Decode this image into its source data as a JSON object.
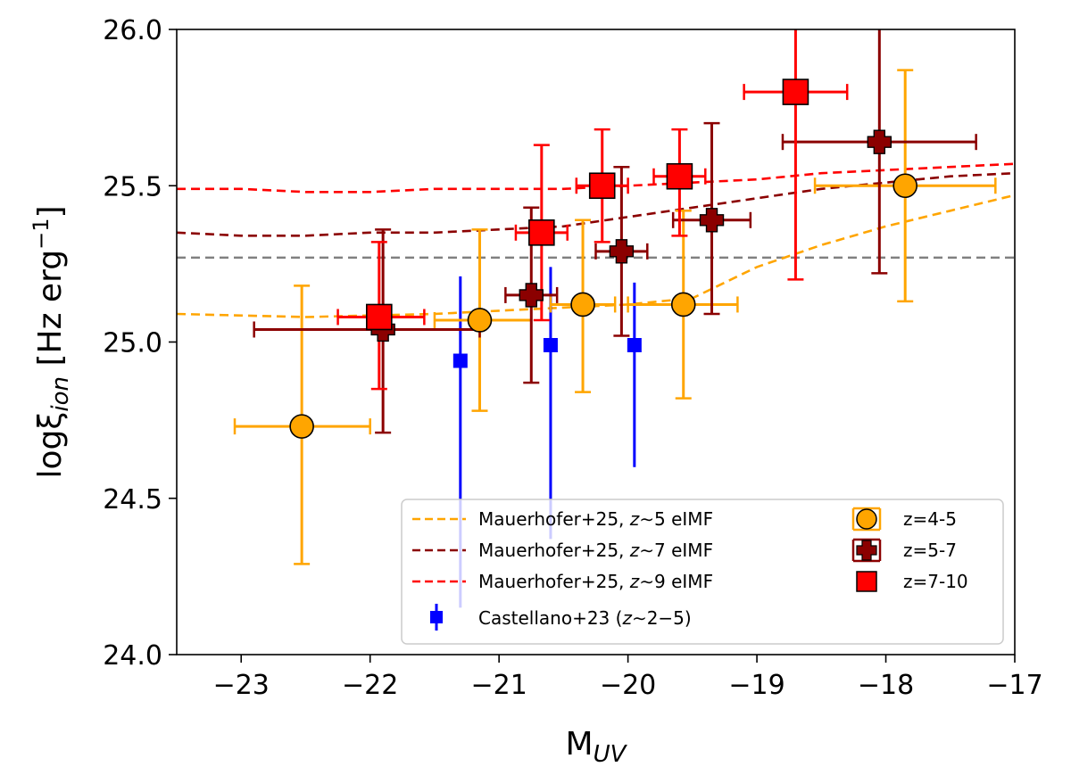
{
  "chart_data": {
    "type": "scatter",
    "xlabel": "M",
    "xlabel_sub": "UV",
    "ylabel": "logξ",
    "ylabel_sub": "ion",
    "ylabel_unit": " [Hz erg",
    "ylabel_sup": "−1",
    "ylabel_close": "]",
    "xlim": [
      -23.5,
      -17
    ],
    "ylim": [
      24.0,
      26.0
    ],
    "xticks": [
      -23,
      -22,
      -21,
      -20,
      -19,
      -18,
      -17
    ],
    "xtick_labels": [
      "−23",
      "−22",
      "−21",
      "−20",
      "−19",
      "−18",
      "−17"
    ],
    "yticks": [
      24.0,
      24.5,
      25.0,
      25.5,
      26.0
    ],
    "ytick_labels": [
      "24.0",
      "24.5",
      "25.0",
      "25.5",
      "26.0"
    ],
    "reference_line": {
      "y": 25.27,
      "color": "#808080",
      "style": "dashed"
    },
    "model_lines": [
      {
        "name": "Mauerhofer+25, z∼5 eIMF",
        "name_prefix": "Mauerhofer+25, ",
        "name_z": "z",
        "name_suffix": "∼5 eIMF",
        "color": "#FFA500",
        "x": [
          -23.5,
          -22.5,
          -21.5,
          -21.0,
          -20.5,
          -20.0,
          -19.5,
          -19.0,
          -18.5,
          -18.0,
          -17.5,
          -17.0
        ],
        "y": [
          25.09,
          25.08,
          25.09,
          25.1,
          25.11,
          25.12,
          25.14,
          25.24,
          25.31,
          25.37,
          25.42,
          25.47
        ]
      },
      {
        "name": "Mauerhofer+25, z∼7 eIMF",
        "name_prefix": "Mauerhofer+25, ",
        "name_z": "z",
        "name_suffix": "∼7 eIMF",
        "color": "#8B0000",
        "x": [
          -23.5,
          -23.0,
          -22.5,
          -22.0,
          -21.5,
          -21.0,
          -20.5,
          -20.0,
          -19.5,
          -19.0,
          -18.5,
          -18.0,
          -17.5,
          -17.0
        ],
        "y": [
          25.35,
          25.34,
          25.34,
          25.35,
          25.35,
          25.36,
          25.37,
          25.4,
          25.43,
          25.46,
          25.49,
          25.51,
          25.53,
          25.54
        ]
      },
      {
        "name": "Mauerhofer+25, z∼9 eIMF",
        "name_prefix": "Mauerhofer+25, ",
        "name_z": "z",
        "name_suffix": "∼9 eIMF",
        "color": "#FF0000",
        "x": [
          -23.5,
          -23.0,
          -22.5,
          -22.0,
          -21.5,
          -21.0,
          -20.5,
          -20.0,
          -19.5,
          -19.0,
          -18.5,
          -18.0,
          -17.5,
          -17.0
        ],
        "y": [
          25.49,
          25.49,
          25.48,
          25.48,
          25.49,
          25.49,
          25.49,
          25.5,
          25.51,
          25.52,
          25.54,
          25.55,
          25.56,
          25.57
        ]
      }
    ],
    "castellano": {
      "name": "Castellano+23 (z∼2−5)",
      "name_prefix": "Castellano+23 (",
      "name_z": "z",
      "name_suffix": "∼2−5)",
      "color": "#0000FF",
      "points": [
        {
          "x": -21.3,
          "y": 24.94,
          "ylo": 24.15,
          "yhi": 25.21
        },
        {
          "x": -20.6,
          "y": 24.99,
          "ylo": 24.37,
          "yhi": 25.24
        },
        {
          "x": -19.95,
          "y": 24.99,
          "ylo": 24.6,
          "yhi": 25.19
        }
      ]
    },
    "series": [
      {
        "name": "z=4-5",
        "marker": "circle",
        "color": "#FFA500",
        "points": [
          {
            "x": -22.53,
            "y": 24.73,
            "xlo": -23.05,
            "xhi": -22.0,
            "ylo": 24.29,
            "yhi": 25.18
          },
          {
            "x": -21.15,
            "y": 25.07,
            "xlo": -21.5,
            "xhi": -20.75,
            "ylo": 24.78,
            "yhi": 25.36
          },
          {
            "x": -20.35,
            "y": 25.12,
            "xlo": -20.6,
            "xhi": -20.1,
            "ylo": 24.84,
            "yhi": 25.39
          },
          {
            "x": -19.57,
            "y": 25.12,
            "xlo": -20.0,
            "xhi": -19.15,
            "ylo": 24.82,
            "yhi": 25.42
          },
          {
            "x": -17.85,
            "y": 25.5,
            "xlo": -18.55,
            "xhi": -17.15,
            "ylo": 25.13,
            "yhi": 25.87
          }
        ]
      },
      {
        "name": "z=5-7",
        "marker": "plus",
        "color": "#8B0000",
        "points": [
          {
            "x": -21.9,
            "y": 25.04,
            "xlo": -22.9,
            "xhi": -21.15,
            "ylo": 24.71,
            "yhi": 25.36
          },
          {
            "x": -20.75,
            "y": 25.15,
            "xlo": -20.95,
            "xhi": -20.55,
            "ylo": 24.87,
            "yhi": 25.43
          },
          {
            "x": -20.05,
            "y": 25.29,
            "xlo": -20.25,
            "xhi": -19.85,
            "ylo": 25.02,
            "yhi": 25.56
          },
          {
            "x": -19.35,
            "y": 25.39,
            "xlo": -19.65,
            "xhi": -19.05,
            "ylo": 25.09,
            "yhi": 25.7
          },
          {
            "x": -18.05,
            "y": 25.64,
            "xlo": -18.8,
            "xhi": -17.3,
            "ylo": 25.22,
            "yhi": 26.05
          }
        ]
      },
      {
        "name": "z=7-10",
        "marker": "square",
        "color": "#FF0000",
        "points": [
          {
            "x": -21.93,
            "y": 25.08,
            "xlo": -22.25,
            "xhi": -21.58,
            "ylo": 24.85,
            "yhi": 25.32
          },
          {
            "x": -20.67,
            "y": 25.35,
            "xlo": -20.87,
            "xhi": -20.47,
            "ylo": 25.07,
            "yhi": 25.63
          },
          {
            "x": -20.2,
            "y": 25.5,
            "xlo": -20.4,
            "xhi": -20.0,
            "ylo": 25.32,
            "yhi": 25.68
          },
          {
            "x": -19.6,
            "y": 25.53,
            "xlo": -19.8,
            "xhi": -19.4,
            "ylo": 25.34,
            "yhi": 25.68
          },
          {
            "x": -18.7,
            "y": 25.8,
            "xlo": -19.1,
            "xhi": -18.3,
            "ylo": 25.2,
            "yhi": 26.05
          }
        ]
      }
    ]
  }
}
